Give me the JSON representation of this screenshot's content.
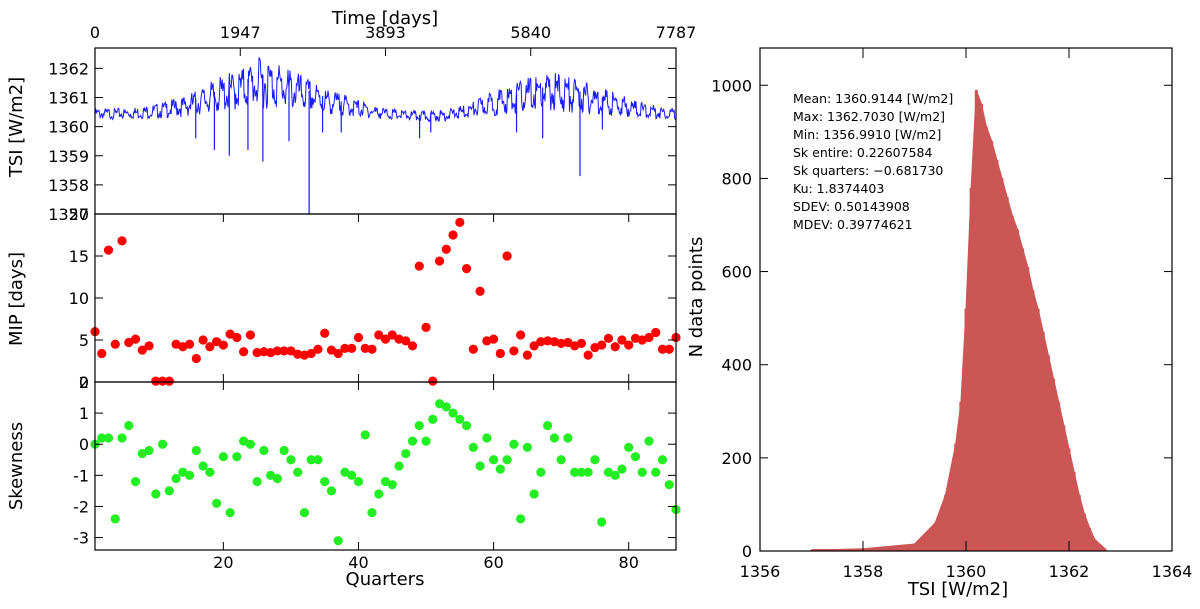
{
  "colors": {
    "tsi_line": "#1a1aff",
    "mip_points": "#ff0000",
    "skew_points": "#22ee22",
    "histogram": "#cc5555"
  },
  "chart_data": [
    {
      "id": "tsi-timeseries",
      "type": "line",
      "xlabel_top": "Time [days]",
      "ylabel": "TSI [W/m2]",
      "top_xticks": [
        "0",
        "1947",
        "3893",
        "5840",
        "7787"
      ],
      "xlim": [
        0,
        7787
      ],
      "ylim": [
        1357,
        1362.7
      ],
      "yticks": [
        "1357",
        "1358",
        "1359",
        "1360",
        "1361",
        "1362"
      ],
      "series": [
        {
          "x": [
            0,
            400,
            800,
            1200,
            1400,
            1700,
            1947,
            2100,
            2300,
            2600,
            2900,
            3100,
            3400,
            3700,
            3893,
            4100,
            4400,
            4700,
            5000,
            5300,
            5600,
            5840,
            6200,
            6500,
            6800,
            7100,
            7400,
            7787
          ],
          "y": [
            1360.5,
            1360.5,
            1360.6,
            1360.8,
            1361.0,
            1361.3,
            1361.5,
            1361.7,
            1361.8,
            1361.5,
            1361.2,
            1361.0,
            1360.8,
            1360.6,
            1360.5,
            1360.45,
            1360.4,
            1360.45,
            1360.6,
            1360.9,
            1361.1,
            1361.3,
            1361.4,
            1361.2,
            1361.0,
            1360.8,
            1360.6,
            1360.5
          ]
        }
      ],
      "dips": [
        {
          "x": 1350,
          "y": 1359.6
        },
        {
          "x": 1600,
          "y": 1359.2
        },
        {
          "x": 1800,
          "y": 1359.0
        },
        {
          "x": 2050,
          "y": 1359.2
        },
        {
          "x": 2250,
          "y": 1358.8
        },
        {
          "x": 2600,
          "y": 1359.5
        },
        {
          "x": 2870,
          "y": 1357.0
        },
        {
          "x": 3050,
          "y": 1359.8
        },
        {
          "x": 3300,
          "y": 1359.8
        },
        {
          "x": 4350,
          "y": 1359.6
        },
        {
          "x": 4500,
          "y": 1359.8
        },
        {
          "x": 5650,
          "y": 1359.8
        },
        {
          "x": 6000,
          "y": 1359.6
        },
        {
          "x": 6500,
          "y": 1358.3
        },
        {
          "x": 6800,
          "y": 1359.9
        }
      ]
    },
    {
      "id": "mip-quarters",
      "type": "scatter",
      "ylabel": "MIP [days]",
      "xlim": [
        1,
        87
      ],
      "ylim": [
        0,
        20
      ],
      "yticks": [
        "0",
        "5",
        "10",
        "15",
        "20"
      ],
      "points": [
        [
          1,
          6.0
        ],
        [
          2,
          3.4
        ],
        [
          3,
          15.7
        ],
        [
          4,
          4.5
        ],
        [
          5,
          16.8
        ],
        [
          6,
          4.7
        ],
        [
          7,
          5.1
        ],
        [
          8,
          3.8
        ],
        [
          9,
          4.3
        ],
        [
          10,
          0.1
        ],
        [
          11,
          0.1
        ],
        [
          12,
          0.1
        ],
        [
          13,
          4.5
        ],
        [
          14,
          4.2
        ],
        [
          15,
          4.5
        ],
        [
          16,
          2.8
        ],
        [
          17,
          5.0
        ],
        [
          18,
          4.2
        ],
        [
          19,
          4.8
        ],
        [
          20,
          4.4
        ],
        [
          21,
          5.7
        ],
        [
          22,
          5.3
        ],
        [
          23,
          3.6
        ],
        [
          24,
          5.6
        ],
        [
          25,
          3.5
        ],
        [
          26,
          3.6
        ],
        [
          27,
          3.5
        ],
        [
          28,
          3.7
        ],
        [
          29,
          3.7
        ],
        [
          30,
          3.7
        ],
        [
          31,
          3.3
        ],
        [
          32,
          3.2
        ],
        [
          33,
          3.4
        ],
        [
          34,
          3.9
        ],
        [
          35,
          5.8
        ],
        [
          36,
          3.8
        ],
        [
          37,
          3.4
        ],
        [
          38,
          4.0
        ],
        [
          39,
          4.0
        ],
        [
          40,
          5.3
        ],
        [
          41,
          4.0
        ],
        [
          42,
          3.9
        ],
        [
          43,
          5.6
        ],
        [
          44,
          5.1
        ],
        [
          45,
          5.6
        ],
        [
          46,
          5.1
        ],
        [
          47,
          4.9
        ],
        [
          48,
          4.3
        ],
        [
          49,
          13.8
        ],
        [
          50,
          6.5
        ],
        [
          51,
          0.1
        ],
        [
          52,
          14.4
        ],
        [
          53,
          15.8
        ],
        [
          54,
          17.5
        ],
        [
          55,
          19.0
        ],
        [
          56,
          13.5
        ],
        [
          57,
          3.9
        ],
        [
          58,
          10.8
        ],
        [
          59,
          4.9
        ],
        [
          60,
          5.1
        ],
        [
          61,
          3.4
        ],
        [
          62,
          15.0
        ],
        [
          63,
          3.7
        ],
        [
          64,
          5.6
        ],
        [
          65,
          3.2
        ],
        [
          66,
          4.3
        ],
        [
          67,
          4.8
        ],
        [
          68,
          4.9
        ],
        [
          69,
          4.8
        ],
        [
          70,
          4.6
        ],
        [
          71,
          4.7
        ],
        [
          72,
          4.3
        ],
        [
          73,
          4.6
        ],
        [
          74,
          3.2
        ],
        [
          75,
          4.1
        ],
        [
          76,
          4.4
        ],
        [
          77,
          5.2
        ],
        [
          78,
          4.2
        ],
        [
          79,
          5.0
        ],
        [
          80,
          4.4
        ],
        [
          81,
          5.2
        ],
        [
          82,
          5.0
        ],
        [
          83,
          5.3
        ],
        [
          84,
          5.9
        ],
        [
          85,
          3.9
        ],
        [
          86,
          3.9
        ],
        [
          87,
          5.3
        ]
      ]
    },
    {
      "id": "skewness-quarters",
      "type": "scatter",
      "ylabel": "Skewness",
      "xlabel": "Quarters",
      "xlim": [
        1,
        87
      ],
      "ylim": [
        -3.4,
        2
      ],
      "xticks": [
        "20",
        "40",
        "60",
        "80"
      ],
      "yticks": [
        "-3",
        "-2",
        "-1",
        "0",
        "1",
        "2"
      ],
      "points": [
        [
          1,
          0.0
        ],
        [
          2,
          0.2
        ],
        [
          3,
          0.2
        ],
        [
          4,
          -2.4
        ],
        [
          5,
          0.2
        ],
        [
          6,
          0.6
        ],
        [
          7,
          -1.2
        ],
        [
          8,
          -0.3
        ],
        [
          9,
          -0.2
        ],
        [
          10,
          -1.6
        ],
        [
          11,
          0.0
        ],
        [
          12,
          -1.5
        ],
        [
          13,
          -1.1
        ],
        [
          14,
          -0.9
        ],
        [
          15,
          -1.0
        ],
        [
          16,
          -0.2
        ],
        [
          17,
          -0.7
        ],
        [
          18,
          -0.9
        ],
        [
          19,
          -1.9
        ],
        [
          20,
          -0.4
        ],
        [
          21,
          -2.2
        ],
        [
          22,
          -0.4
        ],
        [
          23,
          0.1
        ],
        [
          24,
          0.0
        ],
        [
          25,
          -1.2
        ],
        [
          26,
          -0.2
        ],
        [
          27,
          -1.0
        ],
        [
          28,
          -1.1
        ],
        [
          29,
          -0.2
        ],
        [
          30,
          -0.5
        ],
        [
          31,
          -0.9
        ],
        [
          32,
          -2.2
        ],
        [
          33,
          -0.5
        ],
        [
          34,
          -0.5
        ],
        [
          35,
          -1.2
        ],
        [
          36,
          -1.5
        ],
        [
          37,
          -3.1
        ],
        [
          38,
          -0.9
        ],
        [
          39,
          -1.0
        ],
        [
          40,
          -1.2
        ],
        [
          41,
          0.3
        ],
        [
          42,
          -2.2
        ],
        [
          43,
          -1.6
        ],
        [
          44,
          -1.2
        ],
        [
          45,
          -1.3
        ],
        [
          46,
          -0.7
        ],
        [
          47,
          -0.3
        ],
        [
          48,
          0.1
        ],
        [
          49,
          0.6
        ],
        [
          50,
          0.1
        ],
        [
          51,
          0.8
        ],
        [
          52,
          1.3
        ],
        [
          53,
          1.2
        ],
        [
          54,
          1.0
        ],
        [
          55,
          0.8
        ],
        [
          56,
          0.6
        ],
        [
          57,
          -0.1
        ],
        [
          58,
          -0.7
        ],
        [
          59,
          0.2
        ],
        [
          60,
          -0.5
        ],
        [
          61,
          -0.8
        ],
        [
          62,
          -0.5
        ],
        [
          63,
          0.0
        ],
        [
          64,
          -2.4
        ],
        [
          65,
          -0.1
        ],
        [
          66,
          -1.6
        ],
        [
          67,
          -0.9
        ],
        [
          68,
          0.6
        ],
        [
          69,
          0.2
        ],
        [
          70,
          -0.5
        ],
        [
          71,
          0.2
        ],
        [
          72,
          -0.9
        ],
        [
          73,
          -0.9
        ],
        [
          74,
          -0.9
        ],
        [
          75,
          -0.5
        ],
        [
          76,
          -2.5
        ],
        [
          77,
          -0.9
        ],
        [
          78,
          -1.0
        ],
        [
          79,
          -0.8
        ],
        [
          80,
          -0.1
        ],
        [
          81,
          -0.4
        ],
        [
          82,
          -0.9
        ],
        [
          83,
          0.1
        ],
        [
          84,
          -0.9
        ],
        [
          85,
          -0.5
        ],
        [
          86,
          -1.3
        ],
        [
          87,
          -2.1
        ]
      ]
    },
    {
      "id": "tsi-histogram",
      "type": "bar",
      "xlabel": "TSI [W/m2]",
      "ylabel": "N data points",
      "xlim": [
        1356,
        1364
      ],
      "ylim": [
        0,
        1080
      ],
      "xticks": [
        "1356",
        "1358",
        "1360",
        "1362",
        "1364"
      ],
      "yticks": [
        "0",
        "200",
        "400",
        "600",
        "800",
        "1000"
      ],
      "bin_centers": [
        1357.0,
        1358.0,
        1359.0,
        1359.4,
        1359.6,
        1359.8,
        1359.9,
        1360.0,
        1360.1,
        1360.2,
        1360.3,
        1360.4,
        1360.5,
        1360.6,
        1360.7,
        1360.8,
        1360.9,
        1361.0,
        1361.1,
        1361.2,
        1361.3,
        1361.4,
        1361.5,
        1361.6,
        1361.7,
        1361.8,
        1361.9,
        1362.0,
        1362.1,
        1362.2,
        1362.3,
        1362.4,
        1362.5,
        1362.7
      ],
      "values": [
        2,
        5,
        15,
        60,
        120,
        230,
        320,
        520,
        780,
        990,
        960,
        910,
        880,
        840,
        800,
        760,
        720,
        690,
        650,
        610,
        560,
        520,
        470,
        420,
        370,
        320,
        270,
        220,
        170,
        120,
        80,
        50,
        25,
        5
      ],
      "stats": [
        "Mean: 1360.9144 [W/m2]",
        "Max: 1362.7030 [W/m2]",
        "Min: 1356.9910 [W/m2]",
        "Sk entire: 0.22607584",
        "Sk quarters: −0.681730",
        "Ku: 1.8374403",
        "SDEV: 0.50143908",
        "MDEV: 0.39774621"
      ]
    }
  ]
}
